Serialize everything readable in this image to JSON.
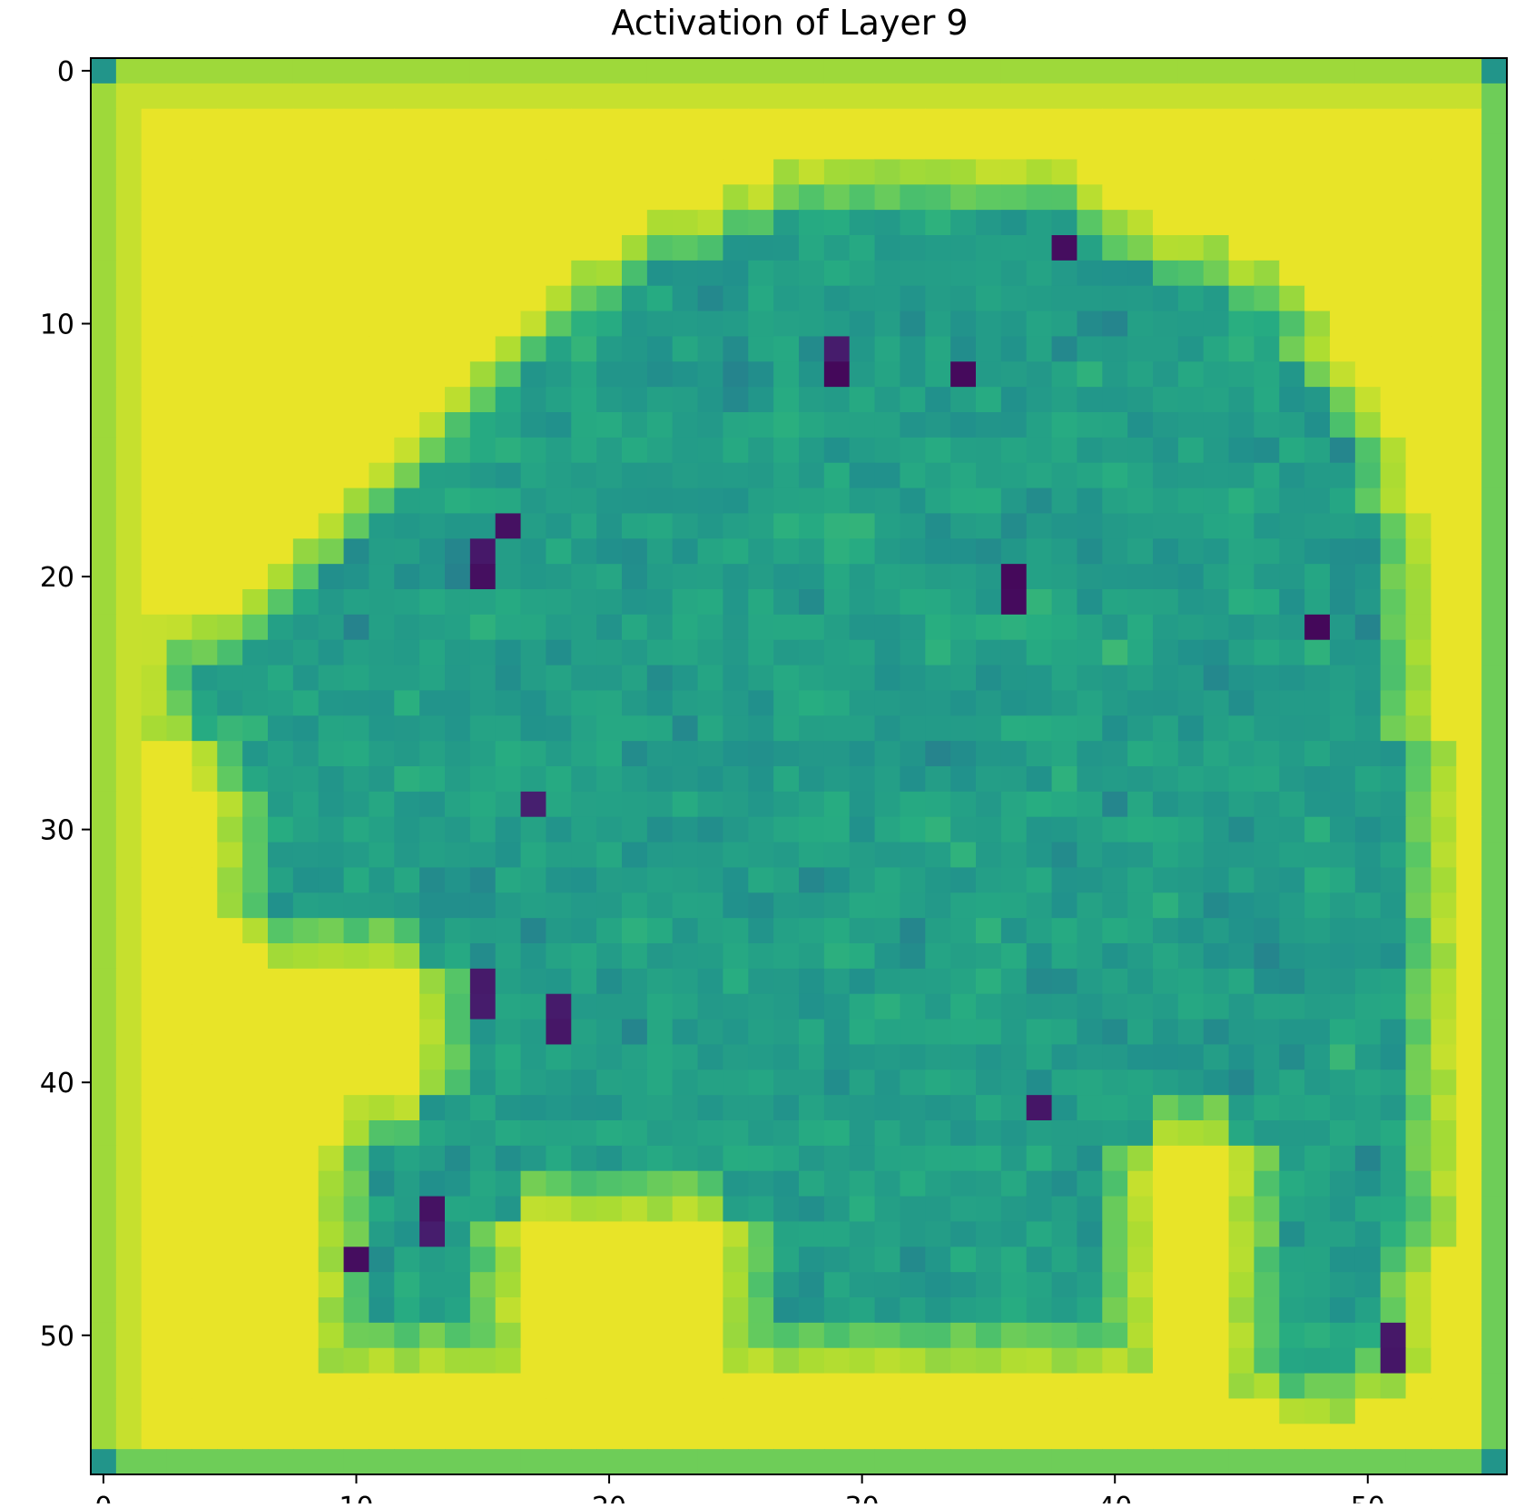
{
  "chart_data": {
    "type": "heatmap",
    "title": "Activation of Layer 9",
    "xlabel": "",
    "ylabel": "",
    "rows": 56,
    "cols": 56,
    "xlim": [
      -0.5,
      55.5
    ],
    "ylim": [
      55.5,
      -0.5
    ],
    "x_ticks": [
      0,
      10,
      20,
      30,
      40,
      50
    ],
    "y_ticks": [
      0,
      10,
      20,
      30,
      40,
      50
    ],
    "colormap": "viridis",
    "grid": false,
    "colors": {
      "low": "#440154",
      "mid": "#21918c",
      "high": "#fde725",
      "background": "#f6e352",
      "border": "#87cd5e",
      "corner": "#3e9a8a"
    }
  }
}
